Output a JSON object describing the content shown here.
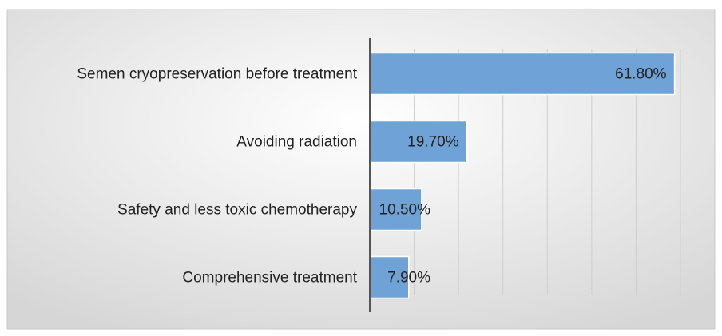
{
  "chart_data": {
    "type": "barh",
    "categories": [
      "Semen cryopreservation before treatment",
      "Avoiding radiation",
      "Safety and less toxic chemotherapy",
      "Comprehensive treatment"
    ],
    "values": [
      61.8,
      19.7,
      10.5,
      7.9
    ],
    "value_labels": [
      "61.80%",
      "19.70%",
      "10.50%",
      "7.90%"
    ],
    "color": "#6fa3d8",
    "xlim": [
      0,
      63
    ],
    "xticks": [
      9,
      18,
      27,
      36,
      45,
      54,
      63
    ],
    "grid": true
  }
}
